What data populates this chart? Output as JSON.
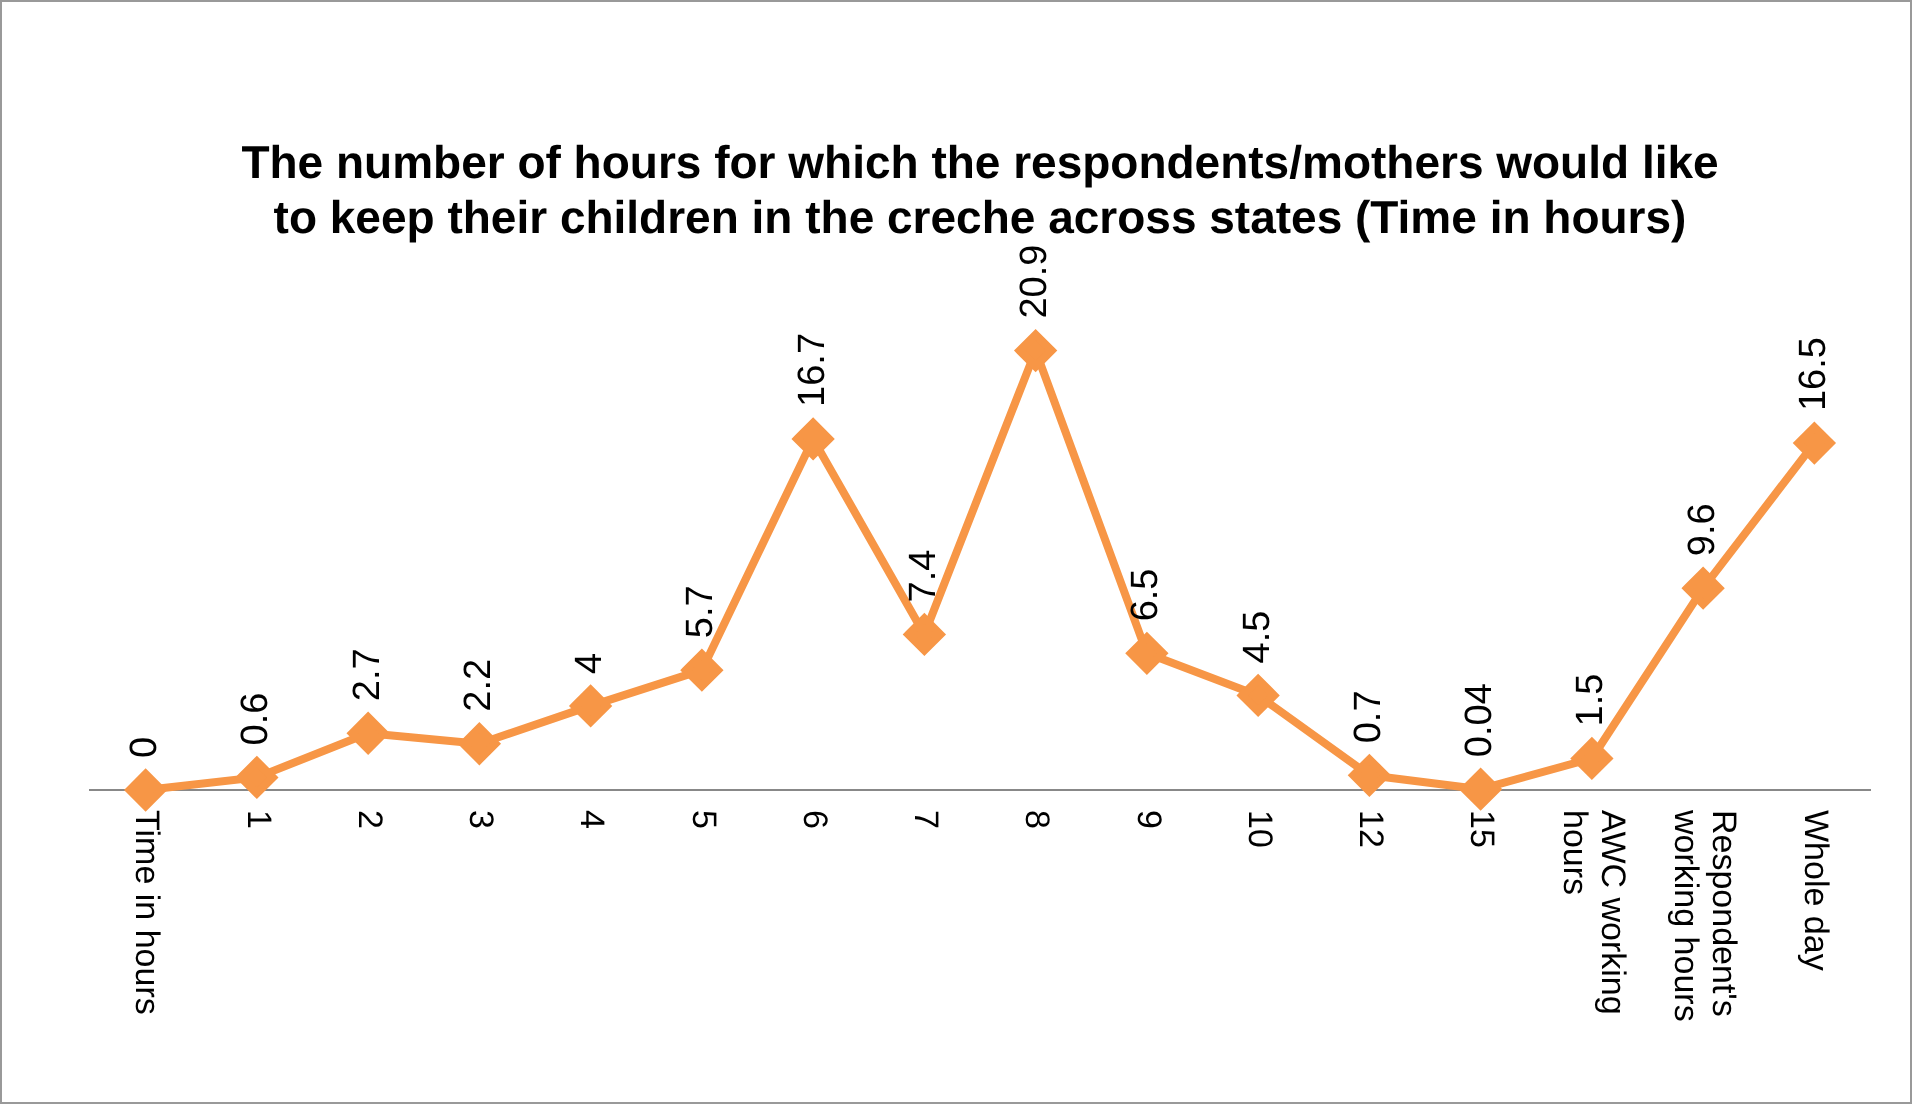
{
  "chart_data": {
    "type": "line",
    "title": "The number of hours for which the respondents/mothers would like to keep their children in the creche across states (Time in hours)",
    "categories": [
      "Time in hours",
      "1",
      "2",
      "3",
      "4",
      "5",
      "6",
      "7",
      "8",
      "9",
      "10",
      "12",
      "15",
      "AWC working hours",
      "Respondent's working hours",
      "Whole day"
    ],
    "series": [
      {
        "color": "#f79646",
        "values": [
          0,
          0.6,
          2.7,
          2.2,
          4,
          5.7,
          16.7,
          7.4,
          20.9,
          6.5,
          4.5,
          0.7,
          0.04,
          1.5,
          9.6,
          16.5
        ]
      }
    ],
    "data_labels": true,
    "marker": "diamond",
    "line_style": "solid",
    "grid": false,
    "legend": false
  }
}
